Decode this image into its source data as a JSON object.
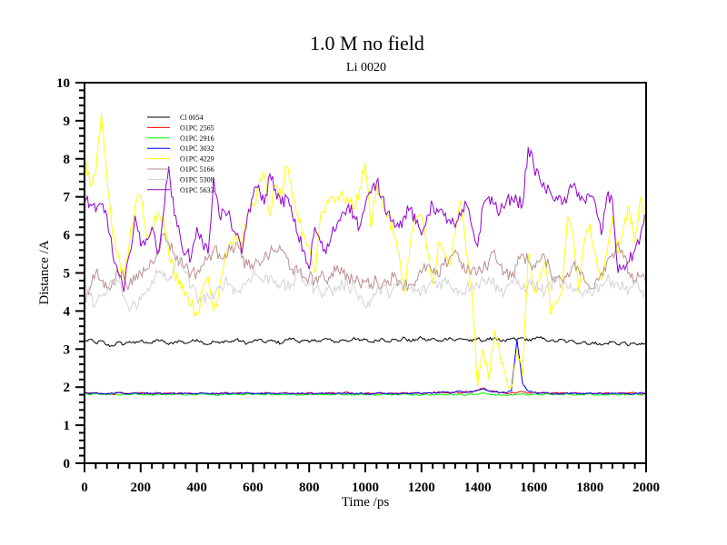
{
  "chart_data": {
    "type": "line",
    "title": "1.0 M no field",
    "subtitle": "Li 0020",
    "xlabel": "Time /ps",
    "ylabel": "Distance /A",
    "xlim": [
      0,
      2000
    ],
    "ylim": [
      0,
      10
    ],
    "x_ticks": [
      "0",
      "200",
      "400",
      "600",
      "800",
      "1000",
      "1200",
      "1400",
      "1600",
      "1800",
      "2000"
    ],
    "y_ticks": [
      "0",
      "1",
      "2",
      "3",
      "4",
      "5",
      "6",
      "7",
      "8",
      "9",
      "10"
    ],
    "grid": false,
    "legend_position": "top-left",
    "x_step": 20,
    "series": [
      {
        "name": "Cl 0054",
        "color": "#000000",
        "values": [
          3.2,
          3.25,
          3.15,
          3.22,
          3.1,
          3.08,
          3.18,
          3.12,
          3.2,
          3.15,
          3.22,
          3.18,
          3.15,
          3.25,
          3.2,
          3.12,
          3.18,
          3.22,
          3.15,
          3.2,
          3.25,
          3.18,
          3.12,
          3.2,
          3.15,
          3.22,
          3.18,
          3.25,
          3.2,
          3.15,
          3.2,
          3.25,
          3.18,
          3.22,
          3.2,
          3.15,
          3.25,
          3.28,
          3.2,
          3.22,
          3.18,
          3.25,
          3.2,
          3.28,
          3.22,
          3.18,
          3.25,
          3.2,
          3.3,
          3.22,
          3.25,
          3.18,
          3.22,
          3.28,
          3.2,
          3.25,
          3.22,
          3.3,
          3.2,
          3.25,
          3.3,
          3.22,
          3.28,
          3.2,
          3.25,
          3.3,
          3.22,
          3.28,
          3.25,
          3.2,
          3.28,
          3.22,
          3.25,
          3.3,
          3.22,
          3.2,
          3.28,
          3.25,
          3.3,
          3.22,
          3.28,
          3.3,
          3.25,
          3.22,
          3.2,
          3.25,
          3.18,
          3.22,
          3.15,
          3.2,
          3.12,
          3.18,
          3.1,
          3.15,
          3.2,
          3.12,
          3.18,
          3.1,
          3.15,
          3.12,
          3.15
        ]
      },
      {
        "name": "O1PC 2565",
        "color": "#ff0000",
        "values": [
          1.83,
          1.85,
          1.82,
          1.84,
          1.83,
          1.81,
          1.85,
          1.83,
          1.82,
          1.84,
          1.86,
          1.83,
          1.82,
          1.85,
          1.83,
          1.84,
          1.82,
          1.85,
          1.83,
          1.84,
          1.82,
          1.85,
          1.83,
          1.84,
          1.82,
          1.86,
          1.83,
          1.84,
          1.85,
          1.82,
          1.84,
          1.83,
          1.85,
          1.82,
          1.84,
          1.83,
          1.85,
          1.84,
          1.82,
          1.83,
          1.85,
          1.83,
          1.84,
          1.82,
          1.85,
          1.83,
          1.84,
          1.86,
          1.83,
          1.82,
          1.85,
          1.84,
          1.83,
          1.85,
          1.82,
          1.84,
          1.83,
          1.85,
          1.84,
          1.86,
          1.83,
          1.84,
          1.85,
          1.88,
          1.86,
          1.84,
          1.87,
          1.85,
          1.9,
          1.86,
          1.92,
          1.98,
          1.9,
          1.88,
          1.86,
          1.84,
          1.85,
          1.86,
          1.88,
          1.84,
          1.86,
          1.85,
          1.84,
          1.83,
          1.85,
          1.84,
          1.83,
          1.85,
          1.84,
          1.82,
          1.85,
          1.83,
          1.84,
          1.85,
          1.82,
          1.84,
          1.83,
          1.85,
          1.84,
          1.82,
          1.84
        ]
      },
      {
        "name": "O1PC 2916",
        "color": "#00ff00",
        "values": [
          1.82,
          1.8,
          1.83,
          1.81,
          1.8,
          1.82,
          1.79,
          1.81,
          1.8,
          1.82,
          1.8,
          1.81,
          1.79,
          1.82,
          1.8,
          1.81,
          1.8,
          1.82,
          1.79,
          1.81,
          1.8,
          1.82,
          1.8,
          1.81,
          1.79,
          1.82,
          1.8,
          1.81,
          1.8,
          1.82,
          1.8,
          1.81,
          1.79,
          1.82,
          1.8,
          1.81,
          1.8,
          1.82,
          1.79,
          1.81,
          1.8,
          1.82,
          1.8,
          1.81,
          1.79,
          1.82,
          1.8,
          1.81,
          1.8,
          1.82,
          1.8,
          1.81,
          1.79,
          1.82,
          1.8,
          1.81,
          1.8,
          1.82,
          1.79,
          1.81,
          1.8,
          1.82,
          1.8,
          1.81,
          1.79,
          1.82,
          1.8,
          1.81,
          1.8,
          1.82,
          1.8,
          1.85,
          1.82,
          1.8,
          1.79,
          1.78,
          1.8,
          1.81,
          1.82,
          1.8,
          1.81,
          1.79,
          1.82,
          1.8,
          1.81,
          1.8,
          1.82,
          1.79,
          1.81,
          1.8,
          1.82,
          1.8,
          1.81,
          1.79,
          1.82,
          1.8,
          1.81,
          1.8,
          1.82,
          1.79,
          1.81
        ]
      },
      {
        "name": "O1PC 3032",
        "color": "#0000ff",
        "values": [
          1.84,
          1.82,
          1.85,
          1.83,
          1.82,
          1.84,
          1.86,
          1.83,
          1.82,
          1.84,
          1.83,
          1.85,
          1.82,
          1.84,
          1.83,
          1.82,
          1.85,
          1.83,
          1.84,
          1.82,
          1.83,
          1.85,
          1.82,
          1.84,
          1.83,
          1.85,
          1.82,
          1.84,
          1.83,
          1.86,
          1.82,
          1.84,
          1.83,
          1.85,
          1.82,
          1.84,
          1.83,
          1.82,
          1.85,
          1.83,
          1.84,
          1.82,
          1.83,
          1.85,
          1.82,
          1.84,
          1.83,
          1.85,
          1.82,
          1.84,
          1.83,
          1.82,
          1.85,
          1.83,
          1.84,
          1.82,
          1.83,
          1.85,
          1.82,
          1.84,
          1.83,
          1.85,
          1.84,
          1.86,
          1.88,
          1.85,
          1.87,
          1.9,
          1.86,
          1.88,
          1.92,
          1.95,
          1.9,
          1.88,
          1.86,
          1.85,
          1.9,
          3.25,
          2.1,
          1.9,
          1.86,
          1.84,
          1.85,
          1.83,
          1.84,
          1.82,
          1.85,
          1.83,
          1.84,
          1.82,
          1.85,
          1.83,
          1.84,
          1.82,
          1.85,
          1.83,
          1.84,
          1.82,
          1.83,
          1.85,
          1.82
        ]
      },
      {
        "name": "O1PC 4229",
        "color": "#ffff00",
        "values": [
          8.1,
          7.3,
          7.6,
          9.2,
          7.5,
          6.0,
          5.5,
          4.8,
          5.8,
          6.8,
          7.0,
          6.0,
          6.2,
          6.6,
          6.5,
          5.5,
          5.0,
          4.8,
          4.5,
          4.2,
          3.9,
          4.5,
          4.9,
          4.0,
          4.6,
          5.5,
          5.8,
          6.0,
          5.7,
          6.5,
          6.8,
          7.2,
          7.6,
          6.5,
          7.3,
          7.0,
          7.8,
          7.0,
          6.5,
          6.0,
          5.7,
          5.0,
          6.5,
          6.8,
          7.0,
          7.0,
          7.0,
          6.9,
          6.7,
          7.2,
          7.9,
          6.2,
          7.3,
          6.8,
          6.5,
          6.0,
          5.5,
          4.5,
          5.8,
          6.5,
          6.5,
          5.6,
          4.7,
          5.8,
          5.5,
          5.2,
          6.0,
          6.9,
          5.5,
          4.5,
          2.0,
          3.0,
          2.2,
          3.5,
          2.8,
          2.3,
          2.0,
          3.0,
          2.3,
          5.5,
          4.5,
          4.8,
          5.3,
          3.9,
          4.2,
          4.5,
          6.5,
          6.0,
          4.5,
          5.8,
          6.3,
          5.5,
          4.8,
          5.5,
          6.5,
          5.5,
          6.2,
          6.7,
          5.8,
          7.0,
          6.3
        ]
      },
      {
        "name": "O1PC 5166",
        "color": "#bc8f8f",
        "values": [
          4.3,
          4.6,
          5.0,
          4.8,
          4.6,
          4.8,
          5.0,
          4.9,
          4.7,
          4.8,
          5.0,
          5.1,
          5.3,
          5.6,
          6.0,
          5.8,
          5.5,
          5.3,
          5.2,
          5.0,
          5.0,
          5.2,
          5.4,
          5.6,
          5.5,
          5.5,
          5.6,
          5.8,
          5.4,
          5.2,
          5.1,
          5.3,
          5.4,
          5.5,
          5.6,
          5.6,
          5.4,
          5.1,
          5.0,
          4.9,
          4.9,
          4.8,
          4.9,
          4.8,
          5.0,
          5.2,
          5.0,
          4.9,
          4.8,
          4.7,
          4.8,
          4.7,
          4.8,
          4.7,
          4.8,
          4.9,
          4.8,
          4.7,
          4.7,
          4.8,
          5.0,
          5.2,
          5.0,
          4.9,
          5.2,
          5.4,
          5.6,
          5.3,
          5.0,
          5.1,
          5.0,
          5.1,
          5.3,
          5.6,
          5.2,
          5.0,
          4.9,
          5.2,
          5.5,
          5.3,
          5.2,
          5.3,
          5.4,
          5.0,
          4.9,
          4.8,
          5.0,
          5.2,
          5.1,
          4.8,
          4.6,
          4.8,
          5.0,
          5.3,
          5.5,
          5.8,
          5.4,
          5.0,
          4.8,
          4.9,
          4.7
        ]
      },
      {
        "name": "O1PC 5308",
        "color": "#d3d3d3",
        "values": [
          4.7,
          4.4,
          4.2,
          4.4,
          4.5,
          4.7,
          4.8,
          4.4,
          4.0,
          4.2,
          4.3,
          4.5,
          4.8,
          5.0,
          4.9,
          4.8,
          5.1,
          5.4,
          5.0,
          4.6,
          4.4,
          4.3,
          4.4,
          4.3,
          4.6,
          4.8,
          4.7,
          4.5,
          4.6,
          4.8,
          5.0,
          4.9,
          4.8,
          4.9,
          4.8,
          4.7,
          4.6,
          4.7,
          5.0,
          4.8,
          4.7,
          4.6,
          4.5,
          4.6,
          4.5,
          4.6,
          4.7,
          4.6,
          4.7,
          4.4,
          4.1,
          4.3,
          4.5,
          4.6,
          4.5,
          4.6,
          4.7,
          4.6,
          4.6,
          4.5,
          4.5,
          4.6,
          4.8,
          4.7,
          4.8,
          4.7,
          4.6,
          4.5,
          4.6,
          4.7,
          4.7,
          4.8,
          4.9,
          4.7,
          4.5,
          4.6,
          4.8,
          4.7,
          4.6,
          4.7,
          4.7,
          4.6,
          4.5,
          4.7,
          4.8,
          4.7,
          4.6,
          4.5,
          4.6,
          4.5,
          4.5,
          4.6,
          4.7,
          4.8,
          4.8,
          4.7,
          4.6,
          4.6,
          4.7,
          4.5,
          4.5
        ]
      },
      {
        "name": "O1PC 5633",
        "color": "#9400d3",
        "values": [
          7.0,
          6.8,
          6.6,
          6.8,
          6.5,
          5.5,
          5.0,
          4.5,
          5.5,
          6.5,
          5.7,
          5.9,
          6.2,
          5.5,
          6.5,
          7.8,
          6.5,
          6.0,
          5.5,
          5.4,
          6.2,
          5.8,
          5.5,
          7.5,
          6.5,
          6.6,
          6.4,
          6.0,
          5.5,
          6.5,
          7.0,
          7.3,
          6.8,
          7.6,
          7.2,
          6.8,
          7.0,
          6.5,
          6.0,
          5.6,
          5.1,
          6.2,
          5.8,
          5.5,
          6.0,
          6.3,
          6.6,
          6.8,
          6.5,
          6.2,
          6.8,
          7.1,
          7.4,
          7.0,
          6.6,
          6.4,
          6.2,
          6.5,
          6.7,
          6.3,
          6.0,
          6.5,
          6.8,
          6.6,
          6.5,
          6.4,
          6.2,
          6.5,
          6.8,
          6.2,
          5.7,
          6.8,
          7.0,
          6.8,
          6.6,
          6.8,
          7.0,
          6.9,
          6.8,
          8.3,
          7.8,
          7.5,
          7.2,
          7.1,
          7.0,
          6.8,
          7.0,
          7.3,
          7.1,
          6.9,
          7.0,
          6.8,
          6.0,
          7.0,
          6.9,
          5.0,
          5.2,
          5.3,
          5.6,
          6.0,
          6.5
        ]
      }
    ]
  }
}
